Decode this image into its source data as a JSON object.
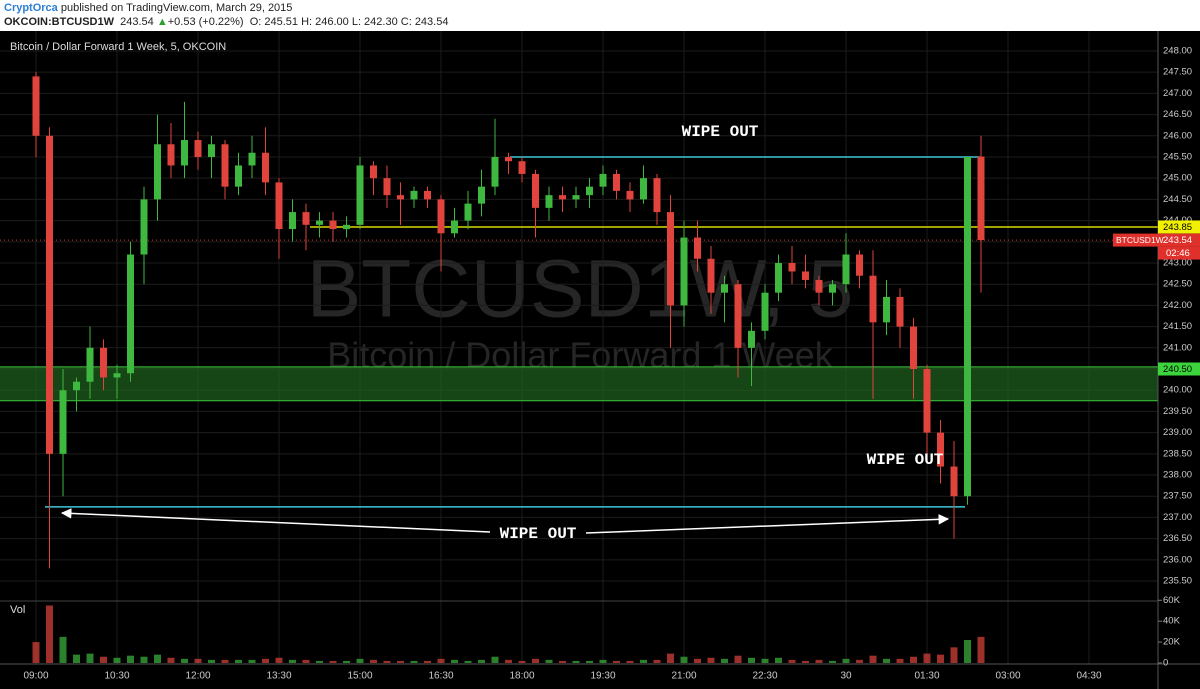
{
  "header": {
    "author": "CryptOrca",
    "published": "published on TradingView.com, March 29, 2015",
    "symbol": "OKCOIN:BTCUSD1W",
    "price": "243.54",
    "direction": "▲",
    "change": "+0.53 (+0.22%)",
    "ohlc": "O: 245.51 H: 246.00 L: 242.30 C: 243.54"
  },
  "chart_data": {
    "type": "candlestick",
    "title": "Bitcoin / Dollar Forward 1 Week, 5, OKCOIN",
    "watermark": "BTCUSD1W, 5",
    "watermark_subtitle": "Bitcoin / Dollar Forward 1 Week",
    "categories": [
      "09:00",
      null,
      null,
      null,
      null,
      null,
      "10:30",
      null,
      null,
      null,
      null,
      null,
      "12:00",
      null,
      null,
      null,
      null,
      null,
      "13:30",
      null,
      null,
      null,
      null,
      null,
      "15:00",
      null,
      null,
      null,
      null,
      null,
      "16:30",
      null,
      null,
      null,
      null,
      null,
      "18:00",
      null,
      null,
      null,
      null,
      null,
      "19:30",
      null,
      null,
      null,
      null,
      null,
      "21:00",
      null,
      null,
      null,
      null,
      null,
      "22:30",
      null,
      null,
      null,
      null,
      null,
      "30",
      null,
      null,
      null,
      null,
      null,
      "01:30",
      null,
      null,
      null,
      null,
      null,
      "03:00",
      null,
      null,
      null,
      null,
      null,
      "04:30",
      null,
      null,
      null,
      null,
      null
    ],
    "open": [
      247.4,
      246.0,
      238.5,
      240.0,
      240.2,
      241.0,
      240.3,
      240.4,
      243.2,
      244.5,
      245.8,
      245.3,
      245.9,
      245.5,
      245.8,
      244.8,
      245.3,
      245.6,
      244.9,
      243.8,
      244.2,
      243.9,
      244.0,
      243.8,
      243.9,
      245.3,
      245.0,
      244.6,
      244.5,
      244.7,
      244.5,
      243.7,
      244.0,
      244.4,
      244.8,
      245.5,
      245.4,
      245.1,
      244.3,
      244.6,
      244.5,
      244.6,
      244.8,
      245.1,
      244.7,
      244.5,
      245.0,
      244.2,
      242.0,
      243.6,
      243.1,
      242.3,
      242.5,
      241.0,
      241.4,
      242.3,
      243.0,
      242.8,
      242.6,
      242.3,
      242.5,
      243.2,
      242.7,
      241.6,
      242.2,
      241.5,
      240.5,
      239.0,
      238.2,
      237.5,
      245.51,
      null,
      null,
      null,
      null,
      null,
      null,
      null,
      null,
      null,
      null,
      null,
      null,
      null
    ],
    "high": [
      247.5,
      246.2,
      240.5,
      240.3,
      241.5,
      241.2,
      240.6,
      243.5,
      244.8,
      246.5,
      246.3,
      246.8,
      246.1,
      246.0,
      245.9,
      245.6,
      246.0,
      246.2,
      245.0,
      244.5,
      244.4,
      244.2,
      244.2,
      244.1,
      245.5,
      245.4,
      245.3,
      244.9,
      244.8,
      244.8,
      244.6,
      244.3,
      244.7,
      245.2,
      246.4,
      245.6,
      245.5,
      245.2,
      244.8,
      244.8,
      244.8,
      245.0,
      245.3,
      245.2,
      244.9,
      245.3,
      245.1,
      244.6,
      244.0,
      244.0,
      243.4,
      242.7,
      242.6,
      241.6,
      242.5,
      243.2,
      243.4,
      243.2,
      242.7,
      242.6,
      243.7,
      243.3,
      243.3,
      242.6,
      242.4,
      241.7,
      240.6,
      239.3,
      238.8,
      245.5,
      246.0,
      null,
      null,
      null,
      null,
      null,
      null,
      null,
      null,
      null,
      null,
      null,
      null,
      null
    ],
    "low": [
      245.5,
      235.8,
      237.5,
      239.5,
      239.8,
      240.0,
      239.8,
      240.2,
      242.5,
      244.0,
      245.0,
      245.0,
      245.2,
      245.0,
      244.5,
      244.6,
      245.0,
      244.6,
      243.1,
      243.5,
      243.3,
      243.6,
      243.5,
      243.6,
      243.8,
      244.6,
      244.3,
      243.9,
      244.3,
      244.3,
      242.8,
      243.6,
      243.8,
      244.1,
      244.6,
      245.1,
      244.9,
      243.6,
      244.0,
      244.2,
      244.3,
      244.3,
      244.6,
      244.5,
      244.2,
      244.4,
      243.9,
      241.0,
      241.5,
      242.8,
      241.8,
      241.6,
      240.3,
      240.1,
      241.2,
      242.1,
      242.5,
      242.4,
      242.0,
      242.0,
      242.3,
      242.4,
      239.8,
      241.3,
      241.0,
      239.8,
      238.5,
      237.8,
      236.5,
      237.3,
      242.3,
      null,
      null,
      null,
      null,
      null,
      null,
      null,
      null,
      null,
      null,
      null,
      null,
      null
    ],
    "close": [
      246.0,
      238.5,
      240.0,
      240.2,
      241.0,
      240.3,
      240.4,
      243.2,
      244.5,
      245.8,
      245.3,
      245.9,
      245.5,
      245.8,
      244.8,
      245.3,
      245.6,
      244.9,
      243.8,
      244.2,
      243.9,
      244.0,
      243.8,
      243.9,
      245.3,
      245.0,
      244.6,
      244.5,
      244.7,
      244.5,
      243.7,
      244.0,
      244.4,
      244.8,
      245.5,
      245.4,
      245.1,
      244.3,
      244.6,
      244.5,
      244.6,
      244.8,
      245.1,
      244.7,
      244.5,
      245.0,
      244.2,
      242.0,
      243.6,
      243.1,
      242.3,
      242.5,
      241.0,
      241.4,
      242.3,
      243.0,
      242.8,
      242.6,
      242.3,
      242.5,
      243.2,
      242.7,
      241.6,
      242.2,
      241.5,
      240.5,
      239.0,
      238.2,
      237.5,
      245.5,
      243.54,
      null,
      null,
      null,
      null,
      null,
      null,
      null,
      null,
      null,
      null,
      null,
      null,
      null
    ],
    "volume": [
      20000,
      55000,
      25000,
      8000,
      9000,
      6000,
      5000,
      7000,
      6000,
      8000,
      5000,
      4000,
      4000,
      3000,
      3000,
      3000,
      3000,
      4000,
      5000,
      3000,
      3000,
      2000,
      2000,
      2000,
      4000,
      3000,
      2000,
      2000,
      2000,
      2000,
      4000,
      3000,
      2000,
      3000,
      6000,
      3000,
      2000,
      4000,
      3000,
      2000,
      2000,
      2000,
      3000,
      2000,
      2000,
      3000,
      3000,
      9000,
      6000,
      4000,
      5000,
      4000,
      7000,
      5000,
      4000,
      5000,
      3000,
      2000,
      3000,
      2000,
      4000,
      3000,
      7000,
      4000,
      4000,
      6000,
      9000,
      8000,
      15000,
      22000,
      25000,
      null,
      null,
      null,
      null,
      null,
      null,
      null,
      null,
      null,
      null,
      null,
      null,
      null
    ],
    "up_color": "#3fb83f",
    "down_color": "#e0443c",
    "ylim": [
      235.1,
      248.4
    ],
    "yticks": [
      {
        "value": 235.5,
        "label": "235.50"
      },
      {
        "value": 236,
        "label": "236.00"
      },
      {
        "value": 236.5,
        "label": "236.50"
      },
      {
        "value": 237,
        "label": "237.00"
      },
      {
        "value": 237.5,
        "label": "237.50"
      },
      {
        "value": 238,
        "label": "238.00"
      },
      {
        "value": 238.5,
        "label": "238.50"
      },
      {
        "value": 239,
        "label": "239.00"
      },
      {
        "value": 239.5,
        "label": "239.50"
      },
      {
        "value": 240,
        "label": "240.00"
      },
      {
        "value": 240.5,
        "label": "240.50"
      },
      {
        "value": 241,
        "label": "241.00"
      },
      {
        "value": 241.5,
        "label": "241.50"
      },
      {
        "value": 242,
        "label": "242.00"
      },
      {
        "value": 242.5,
        "label": "242.50"
      },
      {
        "value": 243,
        "label": "243.00"
      },
      {
        "value": 243.5,
        "label": "243.50"
      },
      {
        "value": 244,
        "label": "244.00"
      },
      {
        "value": 244.5,
        "label": "244.50"
      },
      {
        "value": 245,
        "label": "245.00"
      },
      {
        "value": 245.5,
        "label": "245.50"
      },
      {
        "value": 246,
        "label": "246.00"
      },
      {
        "value": 246.5,
        "label": "246.50"
      },
      {
        "value": 247,
        "label": "247.00"
      },
      {
        "value": 247.5,
        "label": "247.50"
      },
      {
        "value": 248,
        "label": "248.00"
      }
    ],
    "volume_label": "Vol",
    "vol_ylim": [
      0,
      66000
    ],
    "vol_yticks": [
      {
        "value": 0,
        "label": "0"
      },
      {
        "value": 20000,
        "label": "20K"
      },
      {
        "value": 40000,
        "label": "40K"
      },
      {
        "value": 60000,
        "label": "60K"
      }
    ],
    "grid": true,
    "levels": [
      {
        "value": 245.5,
        "color": "#3cc8d8"
      },
      {
        "value": 237.25,
        "color": "#3cc8d8"
      },
      {
        "value": 243.85,
        "color": "#d8d800"
      }
    ],
    "zone": {
      "low": 239.75,
      "high": 240.55,
      "color": "#1d5e1d",
      "edge": "#3cc83c"
    },
    "price_labels": [
      {
        "value": 243.85,
        "label": "243.85",
        "color": "#f0f000"
      },
      {
        "value": 243.54,
        "label": "243.54",
        "color": "#e0302c"
      },
      {
        "value": 240.5,
        "label": "240.50",
        "color": "#3cd43c"
      }
    ],
    "symbol_tag": "BTCUSD1W",
    "countdown": "02:46",
    "annotations": [
      "WIPE OUT",
      "WIPE OUT",
      "WIPE OUT"
    ]
  }
}
